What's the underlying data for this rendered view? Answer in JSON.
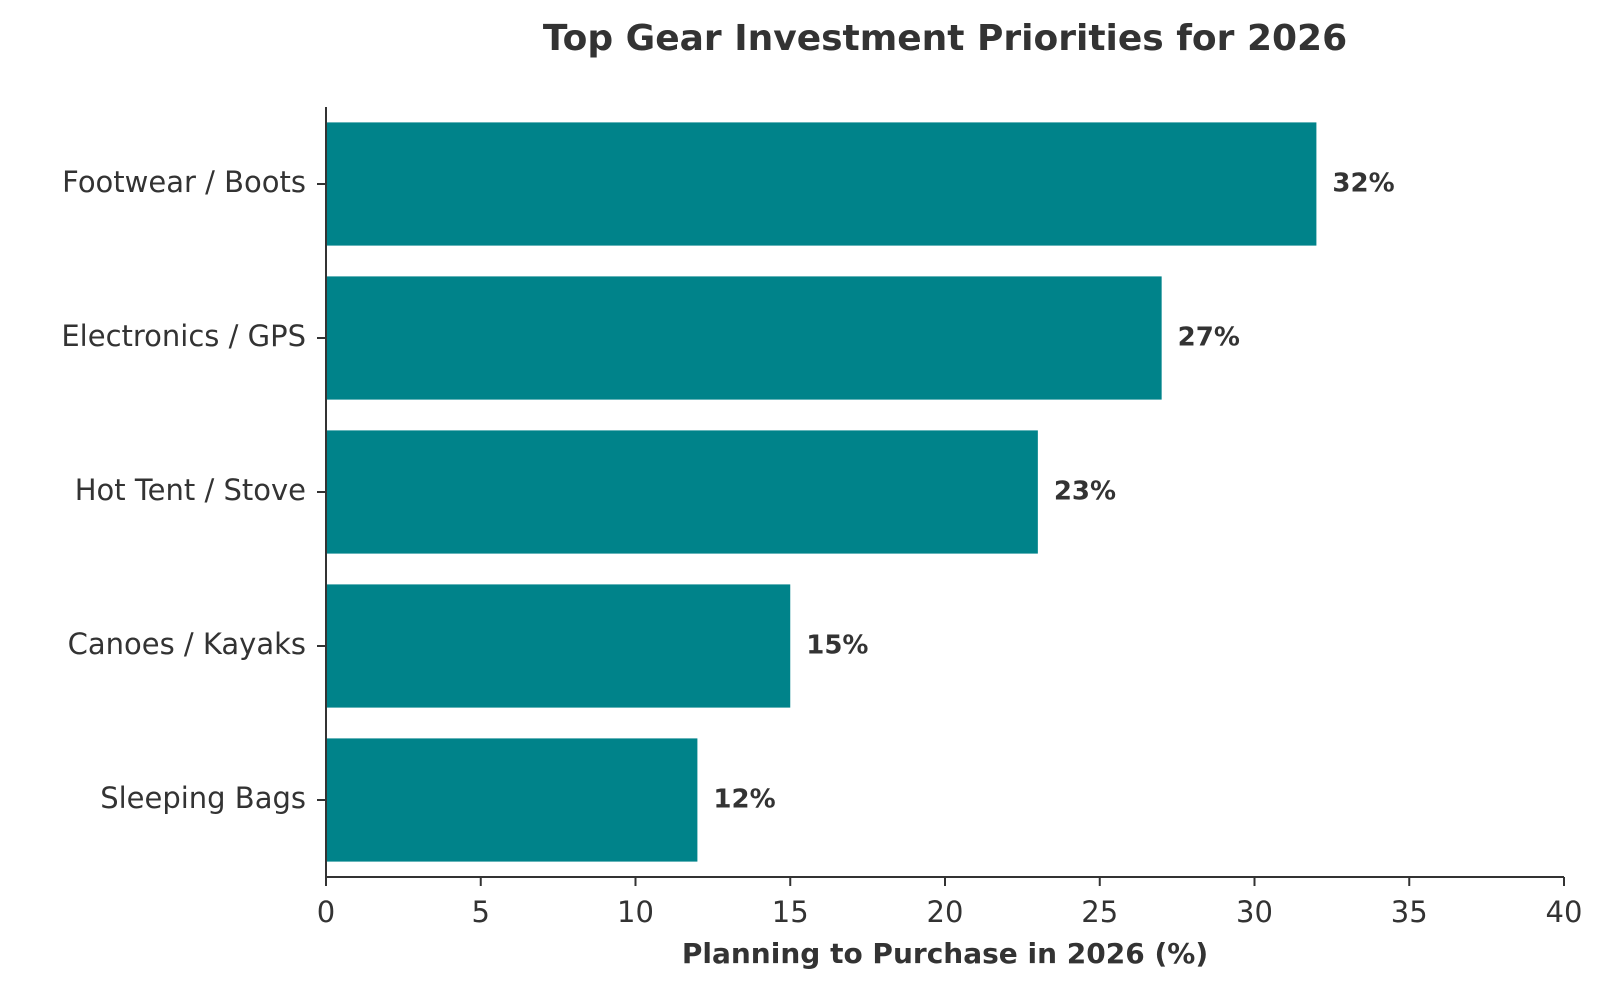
{
  "chart_data": {
    "type": "bar",
    "orientation": "horizontal",
    "title": "Top Gear Investment Priorities for 2026",
    "xlabel": "Planning to Purchase in 2026 (%)",
    "ylabel": "",
    "xlim": [
      0,
      40
    ],
    "x_ticks": [
      0,
      5,
      10,
      15,
      20,
      25,
      30,
      35,
      40
    ],
    "grid": false,
    "legend": "none",
    "bar_color": "#00838A",
    "categories": [
      "Footwear / Boots",
      "Electronics / GPS",
      "Hot Tent / Stove",
      "Canoes / Kayaks",
      "Sleeping Bags"
    ],
    "values": [
      32,
      27,
      23,
      15,
      12
    ],
    "data_labels": [
      "32%",
      "27%",
      "23%",
      "15%",
      "12%"
    ]
  }
}
